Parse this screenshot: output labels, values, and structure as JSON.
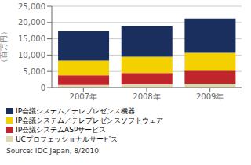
{
  "chart_data": {
    "type": "bar",
    "stacked": true,
    "categories": [
      "2007年",
      "2008年",
      "2009年"
    ],
    "series": [
      {
        "name": "UCプロフェッショナルサービス",
        "color": "#ddd8b0",
        "values": [
          800,
          1000,
          1200
        ]
      },
      {
        "name": "IP会議システムASPサービス",
        "color": "#c0252b",
        "values": [
          3000,
          3500,
          4000
        ]
      },
      {
        "name": "IP会議システム／テレプレゼンスソフトウェア",
        "color": "#f5d000",
        "values": [
          4500,
          5000,
          5500
        ]
      },
      {
        "name": "IP会議システム／テレプレゼンス機器",
        "color": "#1a2f5e",
        "values": [
          9000,
          9500,
          10500
        ]
      }
    ],
    "ylabel": "（百万円）",
    "ylim": [
      0,
      25000
    ],
    "yticks": [
      0,
      {
        "value": 5000,
        "label": "5,000"
      },
      {
        "value": 10000,
        "label": "10,000"
      },
      {
        "value": 15000,
        "label": "15,000"
      },
      {
        "value": 20000,
        "label": "20,000"
      },
      {
        "value": 25000,
        "label": "25,000"
      }
    ],
    "grid": true,
    "legend": "bottom",
    "annotations": [
      "Source: IDC Japan, 8/2010"
    ]
  }
}
